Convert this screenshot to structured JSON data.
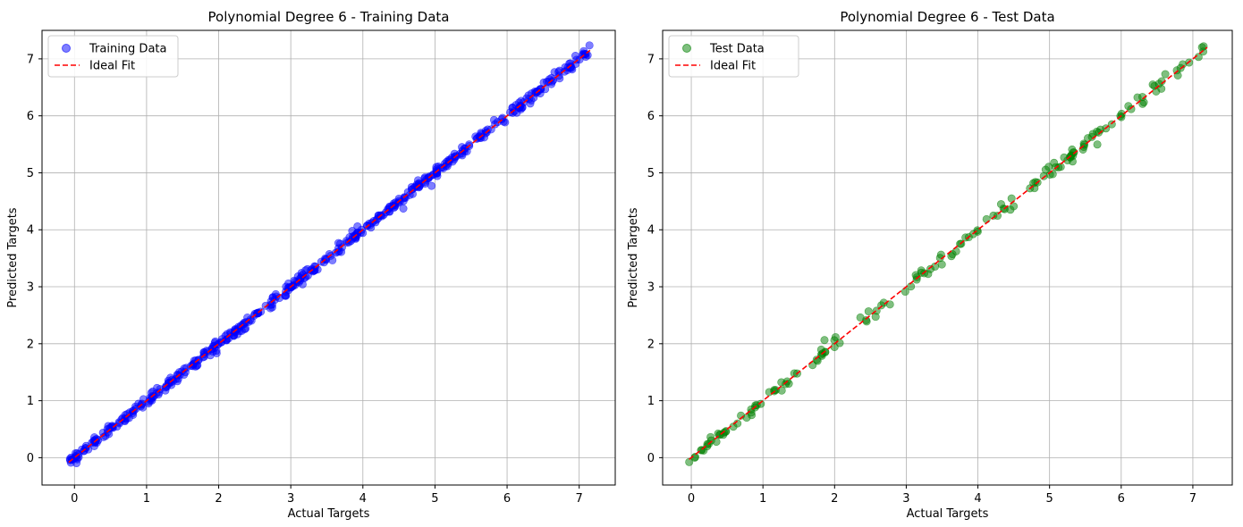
{
  "chart_data": [
    {
      "type": "scatter",
      "title": "Polynomial Degree 6 - Training Data",
      "xlabel": "Actual Targets",
      "ylabel": "Predicted Targets",
      "xlim": [
        -0.45,
        7.5
      ],
      "ylim": [
        -0.48,
        7.5
      ],
      "xticks": [
        "0",
        "1",
        "2",
        "3",
        "4",
        "5",
        "6",
        "7"
      ],
      "yticks": [
        "0",
        "1",
        "2",
        "3",
        "4",
        "5",
        "6",
        "7"
      ],
      "grid": true,
      "legend_position": "top-left",
      "series": [
        {
          "name": "Training Data",
          "kind": "scatter",
          "color": "#0000ff",
          "alpha": 0.5,
          "x_range": [
            -0.08,
            7.15
          ],
          "approx_count": 480,
          "note_relation": "y approximately equals x"
        },
        {
          "name": "Ideal Fit",
          "kind": "line",
          "style": "dashed",
          "color": "#ff0000",
          "x": [
            -0.08,
            7.15
          ],
          "y": [
            -0.08,
            7.15
          ]
        }
      ]
    },
    {
      "type": "scatter",
      "title": "Polynomial Degree 6 - Test Data",
      "xlabel": "Actual Targets",
      "ylabel": "Predicted Targets",
      "xlim": [
        -0.4,
        7.55
      ],
      "ylim": [
        -0.48,
        7.5
      ],
      "xticks": [
        "0",
        "1",
        "2",
        "3",
        "4",
        "5",
        "6",
        "7"
      ],
      "yticks": [
        "0",
        "1",
        "2",
        "3",
        "4",
        "5",
        "6",
        "7"
      ],
      "grid": true,
      "legend_position": "top-left",
      "series": [
        {
          "name": "Test Data",
          "kind": "scatter",
          "color": "#008000",
          "alpha": 0.5,
          "x_range": [
            -0.03,
            7.2
          ],
          "approx_count": 160,
          "note_relation": "y approximately equals x"
        },
        {
          "name": "Ideal Fit",
          "kind": "line",
          "style": "dashed",
          "color": "#ff0000",
          "x": [
            -0.03,
            7.2
          ],
          "y": [
            -0.03,
            7.2
          ]
        }
      ]
    }
  ]
}
